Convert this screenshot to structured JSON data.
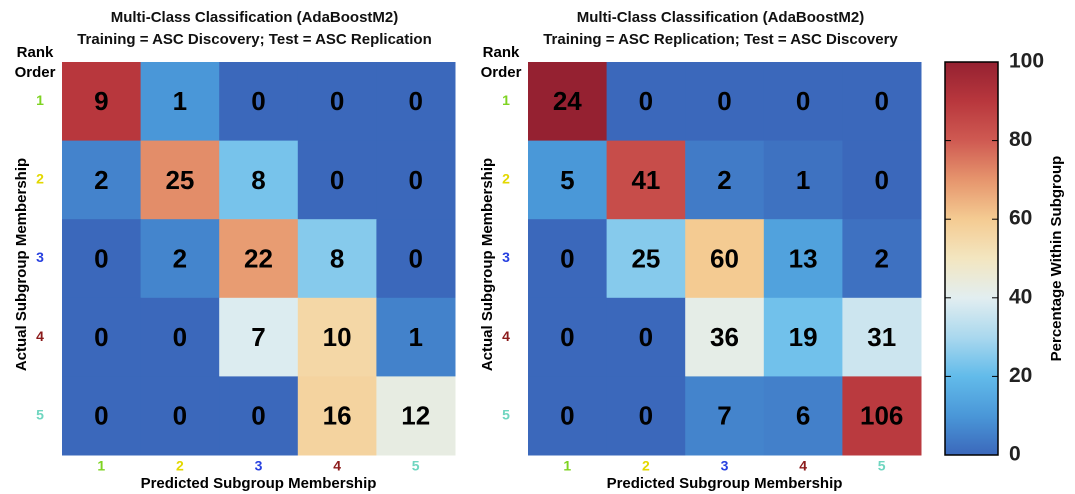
{
  "chart_data": [
    {
      "type": "heatmap",
      "title": "Multi-Class Classification (AdaBoostM2)",
      "subtitle": "Training = ASC Discovery; Test = ASC Replication",
      "row_header": [
        "Rank",
        "Order"
      ],
      "xlabel": "Predicted Subgroup Membership",
      "ylabel": "Actual Subgroup Membership",
      "x_categories": [
        "1",
        "2",
        "3",
        "4",
        "5"
      ],
      "y_categories": [
        "1",
        "2",
        "3",
        "4",
        "5"
      ],
      "category_colors": [
        "#7ed321",
        "#e3d800",
        "#2740e0",
        "#8b1a1a",
        "#6fd6c0"
      ],
      "values": [
        [
          9,
          1,
          0,
          0,
          0
        ],
        [
          2,
          25,
          8,
          0,
          0
        ],
        [
          0,
          2,
          22,
          8,
          0
        ],
        [
          0,
          0,
          7,
          10,
          1
        ],
        [
          0,
          0,
          0,
          16,
          12
        ]
      ]
    },
    {
      "type": "heatmap",
      "title": "Multi-Class Classification (AdaBoostM2)",
      "subtitle": "Training = ASC Replication; Test = ASC Discovery",
      "row_header": [
        "Rank",
        "Order"
      ],
      "xlabel": "Predicted Subgroup Membership",
      "ylabel": "Actual Subgroup Membership",
      "x_categories": [
        "1",
        "2",
        "3",
        "4",
        "5"
      ],
      "y_categories": [
        "1",
        "2",
        "3",
        "4",
        "5"
      ],
      "category_colors": [
        "#7ed321",
        "#e3d800",
        "#2740e0",
        "#8b1a1a",
        "#6fd6c0"
      ],
      "values": [
        [
          24,
          0,
          0,
          0,
          0
        ],
        [
          5,
          41,
          2,
          1,
          0
        ],
        [
          0,
          25,
          60,
          13,
          2
        ],
        [
          0,
          0,
          36,
          19,
          31
        ],
        [
          0,
          0,
          7,
          6,
          106
        ]
      ],
      "colorbar": {
        "label": "Percentage Within Subgroup",
        "lim": [
          0,
          100
        ],
        "ticks": [
          0,
          20,
          40,
          60,
          80,
          100
        ],
        "colormap": [
          "#3b68bb",
          "#4a97d8",
          "#62bbea",
          "#aad8ee",
          "#e2eef0",
          "#f3e6c0",
          "#f4cb92",
          "#e6956d",
          "#cf5a52",
          "#b8373d",
          "#952131"
        ]
      }
    }
  ]
}
